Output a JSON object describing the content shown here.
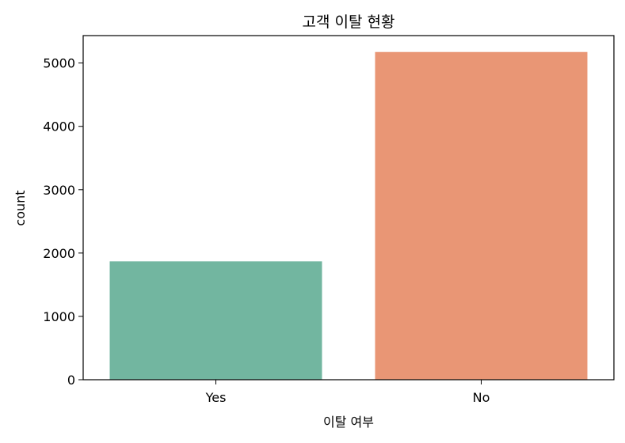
{
  "chart_data": {
    "type": "bar",
    "title": "고객 이탈 현황",
    "xlabel": "이탈 여부",
    "ylabel": "count",
    "categories": [
      "Yes",
      "No"
    ],
    "values": [
      1869,
      5174
    ],
    "colors": [
      "#72b6a0",
      "#e99675"
    ],
    "ylim": [
      0,
      5433
    ],
    "yticks": [
      0,
      1000,
      2000,
      3000,
      4000,
      5000
    ],
    "grid": false
  }
}
